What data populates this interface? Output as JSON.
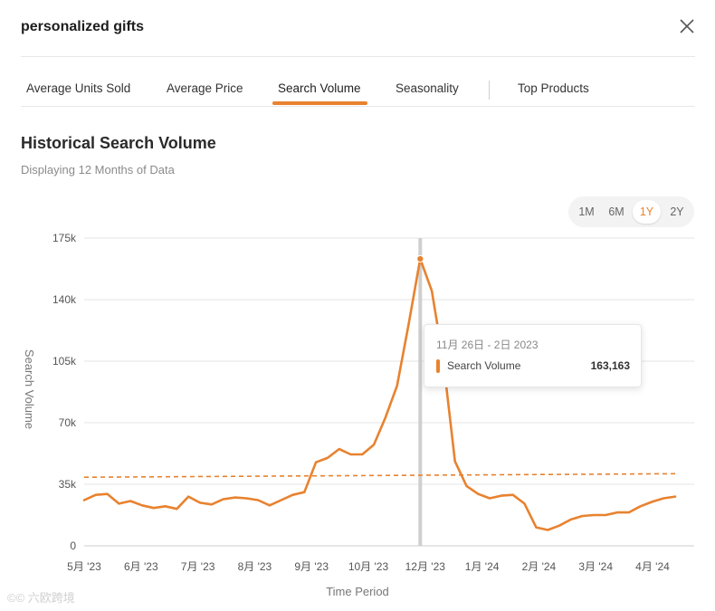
{
  "header": {
    "title": "personalized gifts",
    "close_icon": "close-icon"
  },
  "tabs": [
    {
      "label": "Average Units Sold"
    },
    {
      "label": "Average Price"
    },
    {
      "label": "Search Volume",
      "active": true
    },
    {
      "label": "Seasonality"
    },
    {
      "label": "Top Products"
    }
  ],
  "section": {
    "title": "Historical Search Volume",
    "subtitle": "Displaying 12 Months of Data"
  },
  "ranges": [
    {
      "label": "1M"
    },
    {
      "label": "6M"
    },
    {
      "label": "1Y",
      "active": true
    },
    {
      "label": "2Y"
    }
  ],
  "colors": {
    "accent": "#e8822f",
    "grid": "#e4e4e4",
    "hover_line": "#cfcfcf"
  },
  "tooltip": {
    "date": "11月 26日 - 2日 2023",
    "series": "Search Volume",
    "value": "163,163"
  },
  "watermark": "©© 六欧跨境",
  "chart_data": {
    "type": "line",
    "xlabel": "Time Period",
    "ylabel": "Search Volume",
    "ylim": [
      0,
      175000
    ],
    "y_ticks": [
      0,
      35000,
      70000,
      105000,
      140000,
      175000
    ],
    "y_tick_labels": [
      "0",
      "35k",
      "70k",
      "105k",
      "140k",
      "175k"
    ],
    "x_tick_labels": [
      "5月 '23",
      "6月 '23",
      "7月 '23",
      "8月 '23",
      "9月 '23",
      "10月 '23",
      "12月 '23",
      "1月 '24",
      "2月 '24",
      "3月 '24",
      "4月 '24"
    ],
    "grid": true,
    "series": [
      {
        "name": "Search Volume",
        "values": [
          26000,
          29000,
          29500,
          24000,
          25500,
          23000,
          21500,
          22500,
          21000,
          28000,
          24500,
          23500,
          26500,
          27500,
          27000,
          26000,
          23000,
          26000,
          29000,
          30500,
          47500,
          50000,
          55000,
          52000,
          52000,
          57500,
          73000,
          91000,
          126000,
          163163,
          145000,
          105000,
          48000,
          34000,
          29500,
          27000,
          28500,
          29000,
          24000,
          10500,
          9000,
          11500,
          15000,
          17000,
          17500,
          17500,
          19000,
          19000,
          22500,
          25000,
          27000,
          28000
        ]
      },
      {
        "name": "Trend",
        "dashed": true,
        "values": [
          39000,
          41000
        ]
      }
    ],
    "highlight_index": 29
  }
}
